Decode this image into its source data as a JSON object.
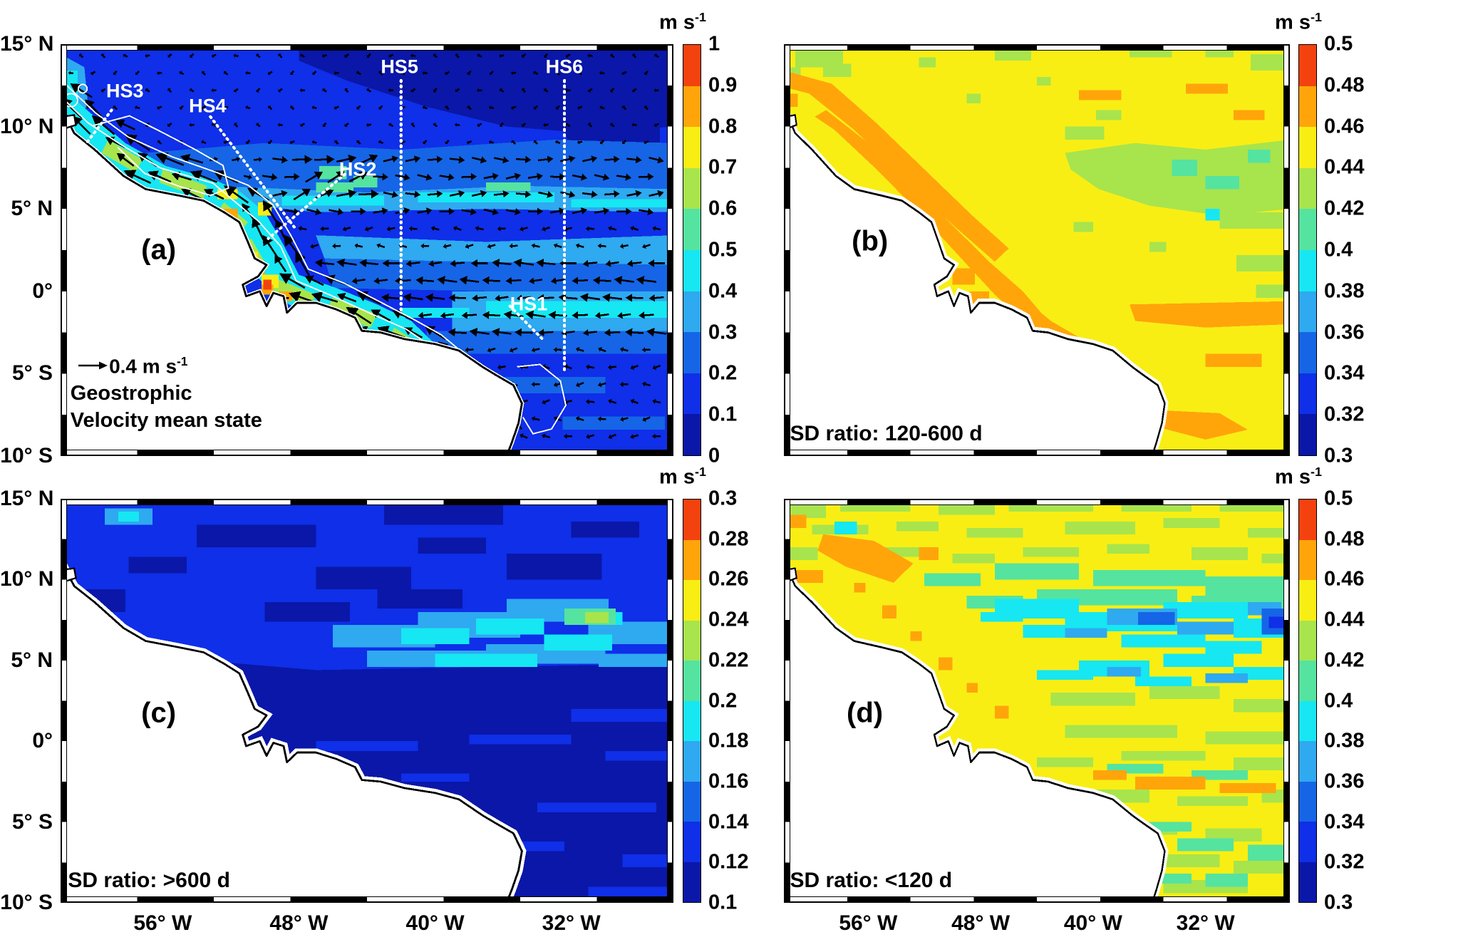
{
  "chart_data": {
    "type": "heatmap",
    "layout": "2x2 grid of latitude-longitude ocean map panels, each with a discrete 10-bin jet colorbar on the right; checkerboard map frames",
    "axes": {
      "x_tick_labels": [
        "56° W",
        "48° W",
        "40° W",
        "32° W"
      ],
      "x_tick_lons": [
        -56,
        -48,
        -40,
        -32
      ],
      "y_tick_labels": [
        "15° N",
        "10° N",
        "5° N",
        "0°",
        "5° S",
        "10° S"
      ],
      "y_tick_lats": [
        15,
        10,
        5,
        0,
        -5,
        -10
      ],
      "lon_range": [
        -62,
        -26
      ],
      "lat_range": [
        -10,
        15
      ],
      "x_labels_shown": "bottom row only",
      "y_labels_shown": "left column only",
      "grid": "off"
    },
    "colormap_low_to_high": [
      "#0a17a8",
      "#0f2fe8",
      "#1565e6",
      "#2fa9f0",
      "#16e7f2",
      "#55e3a0",
      "#a8e44c",
      "#f8ee14",
      "#ffa50a",
      "#f4420e"
    ],
    "colorbar_unit": {
      "base": "m s",
      "exp": "-1"
    },
    "panels": [
      {
        "id": "a",
        "letter": "(a)",
        "caption_line1": "Geostrophic",
        "caption_line2": "Velocity mean state",
        "arrow_scale_label": {
          "base": "0.4 m s",
          "exp": "-1"
        },
        "colorbar_ticks": [
          "1",
          "0.9",
          "0.8",
          "0.7",
          "0.6",
          "0.5",
          "0.4",
          "0.3",
          "0.2",
          "0.1",
          "0"
        ],
        "colorbar_range": [
          0,
          1
        ],
        "sections": [
          "HS1",
          "HS2",
          "HS3",
          "HS4",
          "HS5",
          "HS6"
        ],
        "content": "Mean geostrophic velocity magnitude (shading, 0-1 m/s) with black velocity vectors; strong northwestward North Brazil Current jet (yellow-red, >0.7 m/s) along the shelf break, eastward NECC band near 5-8N, westward flow 2N-2S; white dotted lines mark sections HS1-HS6; white lines show bathymetry contours."
      },
      {
        "id": "b",
        "letter": "(b)",
        "label": "SD ratio: 120-600 d",
        "colorbar_ticks": [
          "0.5",
          "0.48",
          "0.46",
          "0.44",
          "0.42",
          "0.4",
          "0.38",
          "0.36",
          "0.34",
          "0.32",
          "0.3"
        ],
        "colorbar_range": [
          0.3,
          0.5
        ],
        "content": "SD ratio in the 120-600 day band: mostly 0.44-0.46 (yellow), 0.46-0.48 (orange) bands along the shelf break and near the coast, 0.42-0.44 (green) patches in the northeast and east."
      },
      {
        "id": "c",
        "letter": "(c)",
        "label": "SD ratio: >600 d",
        "colorbar_ticks": [
          "0.3",
          "0.28",
          "0.26",
          "0.24",
          "0.22",
          "0.2",
          "0.18",
          "0.16",
          "0.14",
          "0.12",
          "0.1"
        ],
        "colorbar_range": [
          0.1,
          0.3
        ],
        "content": "SD ratio in the >600 day band: mostly 0.1-0.14 (dark blue); mottled 0.12-0.16 in the north with 0.16-0.22 (cyan) patches between about 4-9N in the east and a small 0.22-0.24 spot near 31W, 7N."
      },
      {
        "id": "d",
        "letter": "(d)",
        "label": "SD ratio: <120 d",
        "colorbar_ticks": [
          "0.5",
          "0.48",
          "0.46",
          "0.44",
          "0.42",
          "0.4",
          "0.38",
          "0.36",
          "0.34",
          "0.32",
          "0.3"
        ],
        "colorbar_range": [
          0.3,
          0.5
        ],
        "content": "SD ratio in the <120 day band: mottled 0.42-0.46 (yellow-green) field, 0.36-0.42 (cyan-blue) band near 6-9N in the east, 0.46-0.48 (orange) blob in the northwest along the coast and orange streaks near 1-2S."
      }
    ]
  }
}
